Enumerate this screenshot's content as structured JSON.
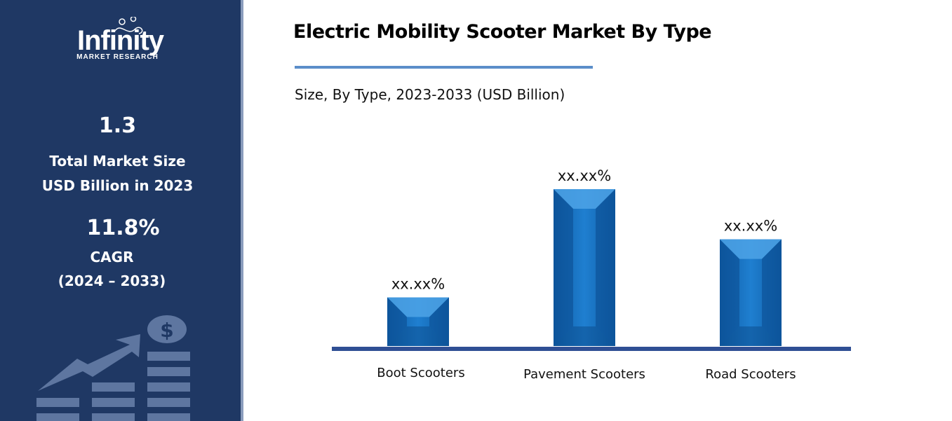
{
  "sidebar": {
    "logo": {
      "word": "Infinity",
      "sub": "MARKET RESEARCH"
    },
    "market_size_value": "1.3",
    "market_size_label_1": "Total Market Size",
    "market_size_label_2": "USD Billion in 2023",
    "cagr_value": "11.8%",
    "cagr_label": "CAGR",
    "cagr_period": "(2024 – 2033)",
    "decor_icon": "growth-chart-dollar-icon"
  },
  "colors": {
    "sidebar": "#1f3864",
    "bar": "#1a75c4",
    "axis": "#2f4f94",
    "underline": "#5b8ec9"
  },
  "chart_data": {
    "type": "bar",
    "title": "Electric Mobility Scooter Market By Type",
    "subtitle": "Size, By Type, 2023-2033 (USD Billion)",
    "categories": [
      "Boot Scooters",
      "Pavement Scooters",
      "Road Scooters"
    ],
    "values": [
      0.31,
      1.0,
      0.68
    ],
    "data_labels": [
      "xx.xx%",
      "xx.xx%",
      "xx.xx%"
    ],
    "xlabel": "",
    "ylabel": "",
    "grid": false,
    "legend": "none"
  }
}
